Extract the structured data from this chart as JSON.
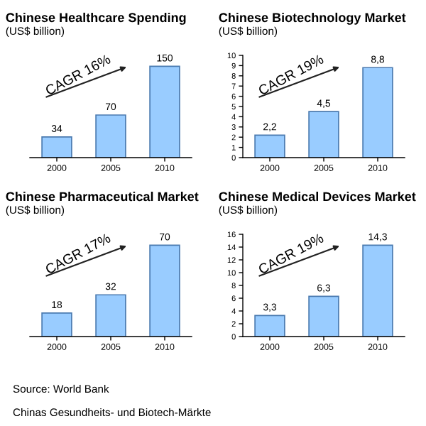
{
  "chart_data": [
    {
      "type": "bar",
      "title": "Chinese Healthcare Spending",
      "subtitle": "(US$ billion)",
      "categories": [
        "2000",
        "2005",
        "2010"
      ],
      "values": [
        34,
        70,
        150
      ],
      "color": "#99ccff",
      "data_labels": true,
      "tick_labels": "x",
      "annotations": [
        "CAGR 16%"
      ]
    },
    {
      "type": "bar",
      "title": "Chinese Biotechnology Market",
      "subtitle": "(US$ billion)",
      "categories": [
        "2000",
        "2005",
        "2010"
      ],
      "values": [
        2.2,
        4.5,
        8.8
      ],
      "value_labels": [
        "2,2",
        "4,5",
        "8,8"
      ],
      "color": "#99ccff",
      "ylim": [
        0,
        10
      ],
      "yticks": [
        0,
        1,
        2,
        3,
        4,
        5,
        6,
        7,
        8,
        9,
        10
      ],
      "annotations": [
        "CAGR 19%"
      ]
    },
    {
      "type": "bar",
      "title": "Chinese Pharmaceutical Market",
      "subtitle": "(US$ billion)",
      "categories": [
        "2000",
        "2005",
        "2010"
      ],
      "values": [
        18,
        32,
        70
      ],
      "color": "#99ccff",
      "data_labels": true,
      "tick_labels": "x",
      "annotations": [
        "CAGR 17%"
      ]
    },
    {
      "type": "bar",
      "title": "Chinese Medical Devices Market",
      "subtitle": "(US$ billion)",
      "categories": [
        "2000",
        "2005",
        "2010"
      ],
      "values": [
        3.3,
        6.3,
        14.3
      ],
      "value_labels": [
        "3,3",
        "6,3",
        "14,3"
      ],
      "color": "#99ccff",
      "ylim": [
        0,
        16
      ],
      "yticks": [
        0,
        2,
        4,
        6,
        8,
        10,
        12,
        14,
        16
      ],
      "annotations": [
        "CAGR 19%",
        "Source: World Bank",
        "Chinas Gesundheits- und Biotech-Märkte"
      ]
    }
  ]
}
